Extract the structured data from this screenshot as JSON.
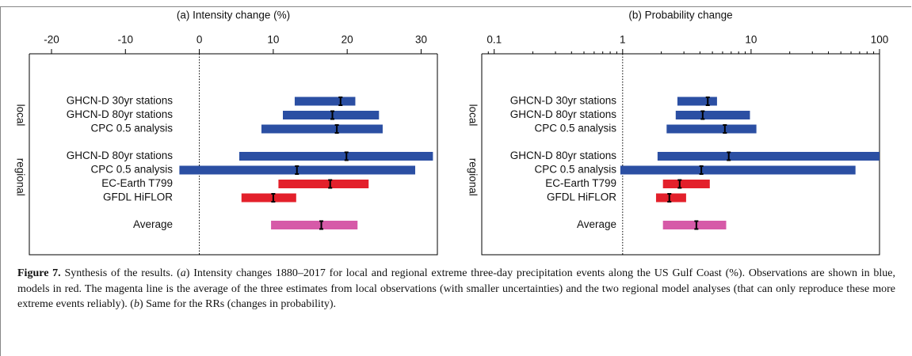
{
  "chart_data": [
    {
      "type": "interval",
      "title": "(a) Intensity change (%)",
      "xlim": [
        -23,
        32.2
      ],
      "xticks": [
        -20,
        -10,
        0,
        10,
        20,
        30
      ],
      "xscale": "linear",
      "refline": 0,
      "categories": [
        "GHCN-D 30yr stations",
        "GHCN-D 80yr stations",
        "CPC 0.5 analysis",
        "GHCN-D 80yr stations",
        "CPC 0.5 analysis",
        "EC-Earth T799",
        "GFDL HiFLOR",
        "Average"
      ],
      "group": [
        "local",
        "local",
        "local",
        "regional",
        "regional",
        "regional",
        "regional",
        null
      ],
      "low": [
        12.9,
        11.3,
        8.4,
        5.4,
        -2.7,
        10.7,
        5.7,
        9.7
      ],
      "best": [
        19.1,
        18.0,
        18.6,
        19.9,
        13.2,
        17.7,
        10.0,
        16.5
      ],
      "high": [
        21.1,
        24.3,
        24.8,
        31.6,
        29.2,
        22.9,
        13.1,
        21.4
      ],
      "colors": [
        "#2b4fa3",
        "#2b4fa3",
        "#2b4fa3",
        "#2b4fa3",
        "#2b4fa3",
        "#e3202b",
        "#e3202b",
        "#d65aa8"
      ]
    },
    {
      "type": "interval",
      "title": "(b) Probability change",
      "xlim": [
        0.08,
        100
      ],
      "xticks": [
        0.1,
        1,
        10,
        100
      ],
      "xscale": "log",
      "refline": 1,
      "categories": [
        "GHCN-D 30yr stations",
        "GHCN-D 80yr stations",
        "CPC 0.5 analysis",
        "GHCN-D 80yr stations",
        "CPC 0.5 analysis",
        "EC-Earth T799",
        "GFDL HiFLOR",
        "Average"
      ],
      "group": [
        "local",
        "local",
        "local",
        "regional",
        "regional",
        "regional",
        "regional",
        null
      ],
      "low": [
        2.67,
        2.59,
        2.2,
        1.87,
        0.96,
        2.06,
        1.82,
        2.06
      ],
      "best": [
        4.6,
        4.2,
        6.25,
        6.7,
        4.1,
        2.78,
        2.31,
        3.75
      ],
      "high": [
        5.43,
        9.8,
        11.0,
        100,
        65,
        4.77,
        3.12,
        6.4
      ],
      "colors": [
        "#2b4fa3",
        "#2b4fa3",
        "#2b4fa3",
        "#2b4fa3",
        "#2b4fa3",
        "#e3202b",
        "#e3202b",
        "#d65aa8"
      ]
    }
  ],
  "caption": {
    "label": "Figure 7.",
    "segments": [
      "Synthesis of the results. (",
      "a",
      ") Intensity changes 1880–2017 for local and regional extreme three-day precipitation events along the US Gulf Coast (%). Observations are shown in blue, models in red. The magenta line is the average of the three estimates from local observations (with smaller uncertainties) and the two regional model analyses (that can only reproduce these more extreme events reliably). (",
      "b",
      ") Same for the RRs (changes in probability)."
    ]
  }
}
